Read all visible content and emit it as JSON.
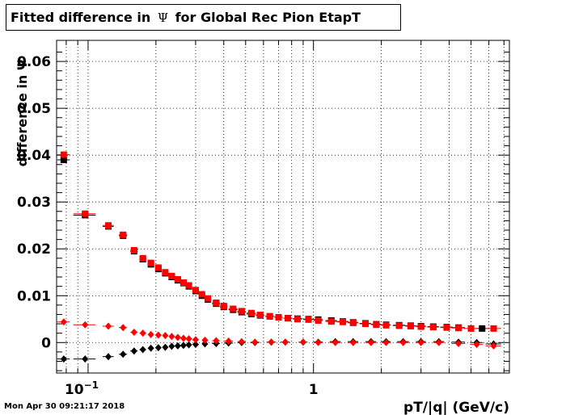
{
  "title": {
    "prefix": "Fitted difference in",
    "symbol": "Ψ",
    "suffix": "for Global Rec Pion EtapT"
  },
  "timestamp": "Mon Apr 30 09:21:17 2018",
  "chart_data": {
    "type": "scatter",
    "xlabel": "pT/|q| (GeV/c)",
    "ylabel": "difference in Ψ",
    "x_scale": "log",
    "xlim": [
      0.0725,
      7.4
    ],
    "ylim": [
      -0.0065,
      0.0645
    ],
    "grid": true,
    "x_ticks": [
      {
        "value": 0.1,
        "base": "10",
        "exp": "−1"
      },
      {
        "value": 1,
        "base": "1",
        "exp": ""
      }
    ],
    "y_ticks": [
      {
        "value": 0,
        "label": "0"
      },
      {
        "value": 0.01,
        "label": "0.01"
      },
      {
        "value": 0.02,
        "label": "0.02"
      },
      {
        "value": 0.03,
        "label": "0.03"
      },
      {
        "value": 0.04,
        "label": "0.04"
      },
      {
        "value": 0.05,
        "label": "0.05"
      },
      {
        "value": 0.06,
        "label": "0.06"
      }
    ],
    "colors": {
      "series_black": "#000000",
      "series_red": "#ff0000"
    },
    "series": [
      {
        "marker": "square",
        "color": "#000000",
        "x": [
          0.078,
          0.097,
          0.123,
          0.143,
          0.16,
          0.175,
          0.19,
          0.205,
          0.22,
          0.235,
          0.25,
          0.265,
          0.28,
          0.3,
          0.32,
          0.34,
          0.37,
          0.4,
          0.44,
          0.48,
          0.53,
          0.58,
          0.64,
          0.7,
          0.77,
          0.85,
          0.95,
          1.05,
          1.2,
          1.35,
          1.5,
          1.7,
          1.9,
          2.1,
          2.4,
          2.7,
          3.0,
          3.4,
          3.9,
          4.4,
          5.6
        ],
        "y": [
          0.039,
          0.0272,
          0.0248,
          0.0228,
          0.0195,
          0.0178,
          0.0167,
          0.0157,
          0.0148,
          0.014,
          0.0133,
          0.0127,
          0.012,
          0.011,
          0.01,
          0.0092,
          0.0083,
          0.0076,
          0.007,
          0.0065,
          0.0061,
          0.0058,
          0.0056,
          0.0054,
          0.0052,
          0.0051,
          0.005,
          0.0049,
          0.0047,
          0.0045,
          0.0043,
          0.0041,
          0.0039,
          0.0038,
          0.0037,
          0.0036,
          0.0035,
          0.0034,
          0.0033,
          0.0032,
          0.003
        ],
        "xerr": [
          0.005,
          0.011,
          0.007,
          0.006,
          0.006,
          0.006,
          0.006,
          0.006,
          0.006,
          0.006,
          0.006,
          0.006,
          0.006,
          0.01,
          0.01,
          0.01,
          0.015,
          0.015,
          0.02,
          0.02,
          0.025,
          0.025,
          0.03,
          0.03,
          0.035,
          0.04,
          0.05,
          0.05,
          0.07,
          0.08,
          0.08,
          0.1,
          0.1,
          0.1,
          0.15,
          0.15,
          0.15,
          0.2,
          0.25,
          0.3,
          0.4
        ]
      },
      {
        "marker": "square",
        "color": "#ff0000",
        "x": [
          0.078,
          0.097,
          0.123,
          0.143,
          0.16,
          0.175,
          0.19,
          0.205,
          0.22,
          0.235,
          0.25,
          0.265,
          0.28,
          0.3,
          0.32,
          0.34,
          0.37,
          0.4,
          0.44,
          0.48,
          0.53,
          0.58,
          0.64,
          0.7,
          0.77,
          0.85,
          0.95,
          1.05,
          1.2,
          1.35,
          1.5,
          1.7,
          1.9,
          2.1,
          2.4,
          2.7,
          3.0,
          3.4,
          3.9,
          4.4,
          5.0,
          6.3
        ],
        "y": [
          0.0401,
          0.0275,
          0.025,
          0.023,
          0.0197,
          0.018,
          0.017,
          0.016,
          0.015,
          0.0142,
          0.0135,
          0.0128,
          0.0122,
          0.0112,
          0.0103,
          0.0094,
          0.0085,
          0.0078,
          0.0072,
          0.0067,
          0.0063,
          0.0059,
          0.0056,
          0.0054,
          0.0052,
          0.005,
          0.0049,
          0.0047,
          0.0045,
          0.0044,
          0.0042,
          0.004,
          0.0038,
          0.0037,
          0.0036,
          0.0035,
          0.0034,
          0.0033,
          0.0032,
          0.0031,
          0.003,
          0.003
        ],
        "xerr": [
          0.005,
          0.011,
          0.007,
          0.006,
          0.006,
          0.006,
          0.006,
          0.006,
          0.006,
          0.006,
          0.006,
          0.006,
          0.006,
          0.01,
          0.01,
          0.01,
          0.015,
          0.015,
          0.02,
          0.02,
          0.025,
          0.025,
          0.03,
          0.03,
          0.035,
          0.04,
          0.05,
          0.05,
          0.07,
          0.08,
          0.08,
          0.1,
          0.1,
          0.1,
          0.15,
          0.15,
          0.15,
          0.2,
          0.25,
          0.3,
          0.35,
          0.5
        ]
      },
      {
        "marker": "diamond",
        "color": "#000000",
        "x": [
          0.078,
          0.097,
          0.123,
          0.143,
          0.16,
          0.175,
          0.19,
          0.205,
          0.22,
          0.235,
          0.25,
          0.265,
          0.28,
          0.3,
          0.33,
          0.37,
          0.42,
          0.48,
          0.55,
          0.65,
          0.75,
          0.9,
          1.05,
          1.25,
          1.5,
          1.8,
          2.1,
          2.5,
          3.0,
          3.6,
          4.4,
          5.3,
          6.3
        ],
        "y": [
          -0.0035,
          -0.0035,
          -0.003,
          -0.0025,
          -0.0018,
          -0.0015,
          -0.0012,
          -0.0011,
          -0.001,
          -0.0008,
          -0.0007,
          -0.0006,
          -0.0005,
          -0.0004,
          -0.0003,
          -0.0002,
          -0.0001,
          0.0,
          0.0,
          0.0001,
          0.0001,
          0.0001,
          0.0001,
          0.0002,
          0.0002,
          0.0002,
          0.0002,
          0.0002,
          0.0002,
          0.0002,
          0.0001,
          0.0,
          -0.0003
        ],
        "xerr": [
          0.005,
          0.011,
          0.007,
          0.006,
          0.006,
          0.006,
          0.006,
          0.006,
          0.006,
          0.006,
          0.006,
          0.006,
          0.006,
          0.01,
          0.01,
          0.015,
          0.02,
          0.02,
          0.025,
          0.03,
          0.035,
          0.04,
          0.05,
          0.07,
          0.08,
          0.1,
          0.1,
          0.15,
          0.15,
          0.2,
          0.3,
          0.35,
          0.5
        ]
      },
      {
        "marker": "diamond",
        "color": "#ff0000",
        "x": [
          0.078,
          0.097,
          0.123,
          0.143,
          0.16,
          0.175,
          0.19,
          0.205,
          0.22,
          0.235,
          0.25,
          0.265,
          0.28,
          0.3,
          0.33,
          0.37,
          0.42,
          0.48,
          0.55,
          0.65,
          0.75,
          0.9,
          1.05,
          1.25,
          1.5,
          1.8,
          2.1,
          2.5,
          3.0,
          3.6,
          4.4,
          5.3,
          6.3
        ],
        "y": [
          0.0044,
          0.0038,
          0.0035,
          0.0032,
          0.0022,
          0.002,
          0.0017,
          0.0016,
          0.0015,
          0.0013,
          0.0011,
          0.0009,
          0.0008,
          0.0006,
          0.0005,
          0.0004,
          0.0003,
          0.0002,
          0.0001,
          0.0001,
          0.0001,
          0.0001,
          0.0,
          0.0,
          0.0,
          0.0,
          0.0,
          0.0,
          0.0,
          0.0,
          -0.0002,
          -0.0004,
          -0.0007
        ],
        "xerr": [
          0.005,
          0.011,
          0.007,
          0.006,
          0.006,
          0.006,
          0.006,
          0.006,
          0.006,
          0.006,
          0.006,
          0.006,
          0.006,
          0.01,
          0.01,
          0.015,
          0.02,
          0.02,
          0.025,
          0.03,
          0.035,
          0.04,
          0.05,
          0.07,
          0.08,
          0.1,
          0.1,
          0.15,
          0.15,
          0.2,
          0.3,
          0.35,
          0.5
        ]
      }
    ]
  }
}
